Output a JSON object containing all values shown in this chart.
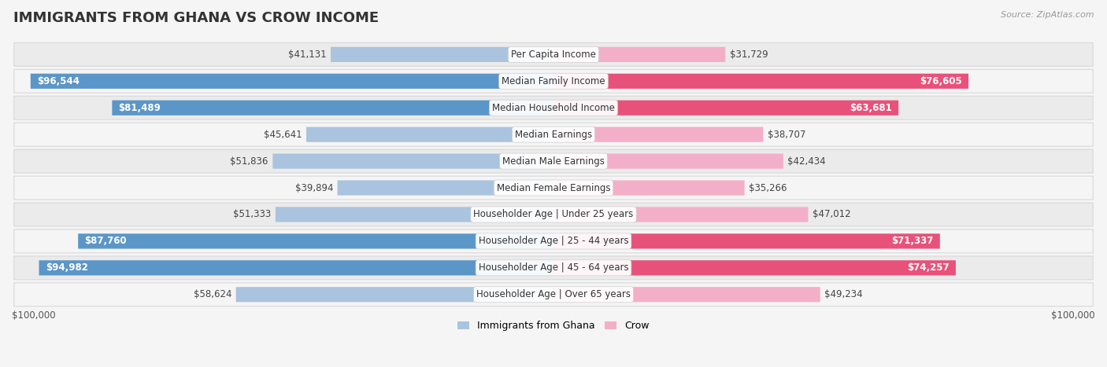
{
  "title": "IMMIGRANTS FROM GHANA VS CROW INCOME",
  "source": "Source: ZipAtlas.com",
  "categories": [
    "Per Capita Income",
    "Median Family Income",
    "Median Household Income",
    "Median Earnings",
    "Median Male Earnings",
    "Median Female Earnings",
    "Householder Age | Under 25 years",
    "Householder Age | 25 - 44 years",
    "Householder Age | 45 - 64 years",
    "Householder Age | Over 65 years"
  ],
  "ghana_values": [
    41131,
    96544,
    81489,
    45641,
    51836,
    39894,
    51333,
    87760,
    94982,
    58624
  ],
  "crow_values": [
    31729,
    76605,
    63681,
    38707,
    42434,
    35266,
    47012,
    71337,
    74257,
    49234
  ],
  "ghana_labels": [
    "$41,131",
    "$96,544",
    "$81,489",
    "$45,641",
    "$51,836",
    "$39,894",
    "$51,333",
    "$87,760",
    "$94,982",
    "$58,624"
  ],
  "crow_labels": [
    "$31,729",
    "$76,605",
    "$63,681",
    "$38,707",
    "$42,434",
    "$35,266",
    "$47,012",
    "$71,337",
    "$74,257",
    "$49,234"
  ],
  "max_value": 100000,
  "ghana_color_light": "#aac4df",
  "ghana_color_dark": "#5b96c8",
  "crow_color_light": "#f4afc8",
  "crow_color_dark": "#e8527a",
  "background_color": "#f5f5f5",
  "xlabel_left": "$100,000",
  "xlabel_right": "$100,000",
  "legend_ghana": "Immigrants from Ghana",
  "legend_crow": "Crow",
  "title_fontsize": 13,
  "label_fontsize": 8.5,
  "category_fontsize": 8.5,
  "ghana_dark_threshold": 75000,
  "crow_dark_threshold": 60000
}
